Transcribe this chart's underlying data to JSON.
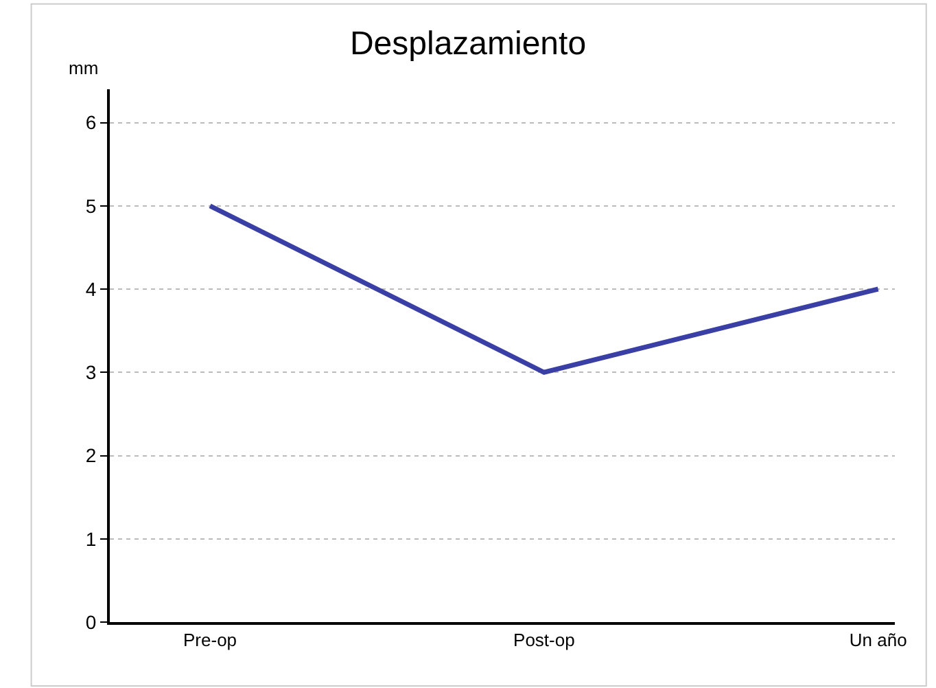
{
  "chart_data": {
    "type": "line",
    "title": "Desplazamiento",
    "ylabel": "mm",
    "categories": [
      "Pre-op",
      "Post-op",
      "Un año"
    ],
    "series": [
      {
        "color": "#3a3fa6",
        "values": [
          5,
          3,
          4
        ]
      }
    ],
    "ylim": [
      0,
      6.4
    ],
    "yticks": [
      0,
      1,
      2,
      3,
      4,
      5,
      6
    ],
    "grid": "y",
    "marker": "none",
    "line_style": "solid"
  }
}
